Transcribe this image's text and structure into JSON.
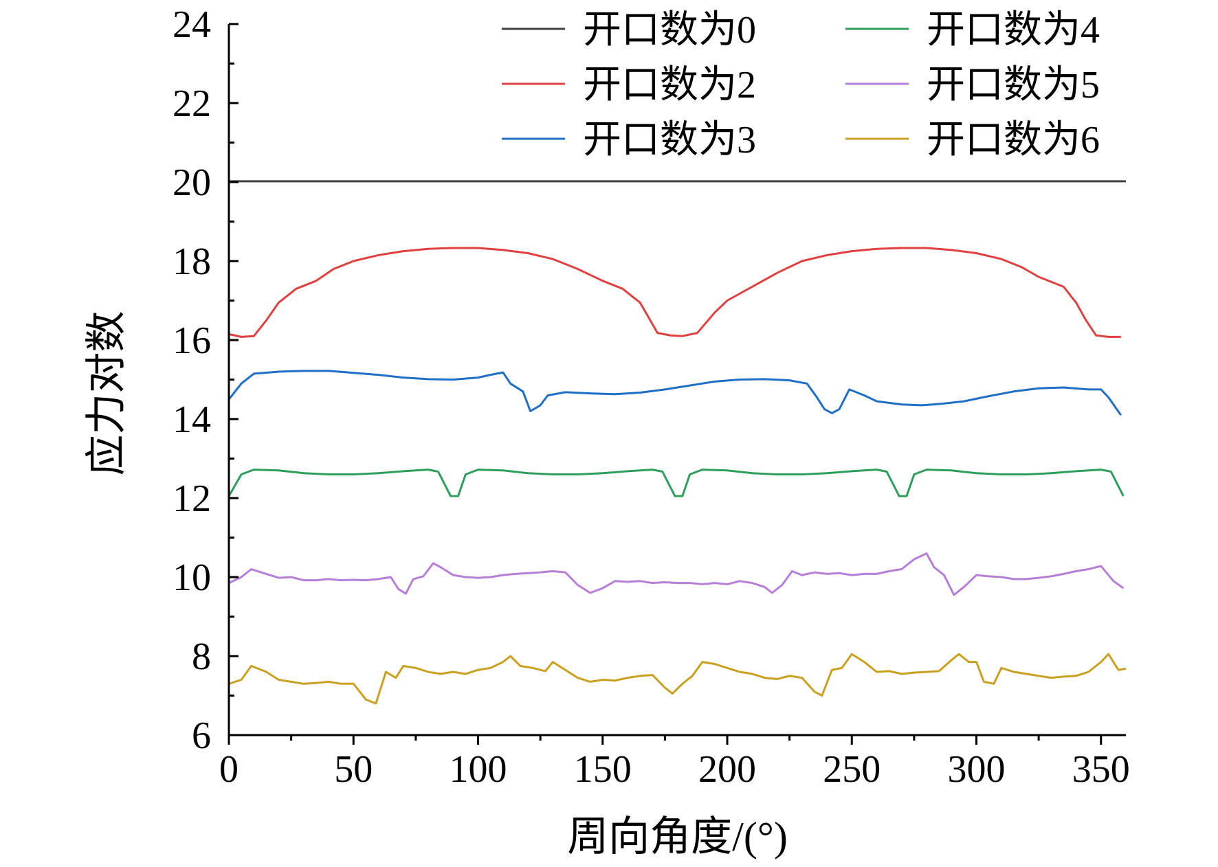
{
  "chart_data": {
    "type": "line",
    "xlabel": "周向角度/(°)",
    "ylabel": "应力对数",
    "xlim": [
      0,
      360
    ],
    "ylim": [
      6,
      24
    ],
    "xticks": [
      0,
      50,
      100,
      150,
      200,
      250,
      300,
      350
    ],
    "yticks": [
      6,
      8,
      10,
      12,
      14,
      16,
      18,
      20,
      22,
      24
    ],
    "grid": false,
    "legend_position": "top-right",
    "series": [
      {
        "name": "开口数为0",
        "color": "#404040",
        "points": [
          [
            0,
            20.02
          ],
          [
            360,
            20.02
          ]
        ]
      },
      {
        "name": "开口数为2",
        "color": "#e04040",
        "points": [
          [
            0,
            16.15
          ],
          [
            5,
            16.08
          ],
          [
            10,
            16.1
          ],
          [
            15,
            16.5
          ],
          [
            20,
            16.95
          ],
          [
            27,
            17.3
          ],
          [
            35,
            17.5
          ],
          [
            42,
            17.8
          ],
          [
            50,
            18.0
          ],
          [
            60,
            18.15
          ],
          [
            70,
            18.25
          ],
          [
            80,
            18.31
          ],
          [
            90,
            18.33
          ],
          [
            100,
            18.33
          ],
          [
            110,
            18.28
          ],
          [
            120,
            18.2
          ],
          [
            130,
            18.05
          ],
          [
            140,
            17.8
          ],
          [
            150,
            17.5
          ],
          [
            158,
            17.3
          ],
          [
            165,
            16.95
          ],
          [
            170,
            16.4
          ],
          [
            172,
            16.18
          ],
          [
            177,
            16.12
          ],
          [
            182,
            16.1
          ],
          [
            188,
            16.18
          ],
          [
            195,
            16.7
          ],
          [
            200,
            17.0
          ],
          [
            210,
            17.35
          ],
          [
            220,
            17.7
          ],
          [
            230,
            18.0
          ],
          [
            240,
            18.15
          ],
          [
            250,
            18.25
          ],
          [
            260,
            18.31
          ],
          [
            270,
            18.33
          ],
          [
            280,
            18.33
          ],
          [
            290,
            18.28
          ],
          [
            300,
            18.2
          ],
          [
            310,
            18.05
          ],
          [
            318,
            17.85
          ],
          [
            325,
            17.6
          ],
          [
            335,
            17.35
          ],
          [
            340,
            16.95
          ],
          [
            344,
            16.5
          ],
          [
            348,
            16.12
          ],
          [
            353,
            16.08
          ],
          [
            358,
            16.08
          ]
        ]
      },
      {
        "name": "开口数为3",
        "color": "#1f6fc6",
        "points": [
          [
            0,
            14.5
          ],
          [
            5,
            14.9
          ],
          [
            10,
            15.15
          ],
          [
            20,
            15.2
          ],
          [
            30,
            15.22
          ],
          [
            40,
            15.22
          ],
          [
            50,
            15.17
          ],
          [
            60,
            15.12
          ],
          [
            70,
            15.05
          ],
          [
            80,
            15.01
          ],
          [
            90,
            15.0
          ],
          [
            100,
            15.05
          ],
          [
            105,
            15.12
          ],
          [
            110,
            15.18
          ],
          [
            113,
            14.9
          ],
          [
            118,
            14.7
          ],
          [
            121,
            14.2
          ],
          [
            125,
            14.35
          ],
          [
            128,
            14.6
          ],
          [
            135,
            14.68
          ],
          [
            145,
            14.65
          ],
          [
            155,
            14.63
          ],
          [
            165,
            14.67
          ],
          [
            175,
            14.75
          ],
          [
            185,
            14.85
          ],
          [
            195,
            14.95
          ],
          [
            205,
            15.0
          ],
          [
            215,
            15.01
          ],
          [
            225,
            14.98
          ],
          [
            232,
            14.9
          ],
          [
            236,
            14.55
          ],
          [
            239,
            14.25
          ],
          [
            242,
            14.15
          ],
          [
            245,
            14.25
          ],
          [
            249,
            14.75
          ],
          [
            255,
            14.6
          ],
          [
            260,
            14.45
          ],
          [
            270,
            14.37
          ],
          [
            278,
            14.35
          ],
          [
            285,
            14.38
          ],
          [
            295,
            14.45
          ],
          [
            305,
            14.58
          ],
          [
            315,
            14.7
          ],
          [
            325,
            14.78
          ],
          [
            335,
            14.8
          ],
          [
            345,
            14.75
          ],
          [
            350,
            14.75
          ],
          [
            353,
            14.55
          ],
          [
            358,
            14.1
          ]
        ]
      },
      {
        "name": "开口数为4",
        "color": "#2e9e5b",
        "points": [
          [
            0,
            12.05
          ],
          [
            5,
            12.6
          ],
          [
            10,
            12.72
          ],
          [
            20,
            12.7
          ],
          [
            30,
            12.63
          ],
          [
            40,
            12.6
          ],
          [
            50,
            12.6
          ],
          [
            60,
            12.63
          ],
          [
            70,
            12.68
          ],
          [
            80,
            12.72
          ],
          [
            84,
            12.67
          ],
          [
            87,
            12.3
          ],
          [
            89,
            12.05
          ],
          [
            92,
            12.05
          ],
          [
            95,
            12.6
          ],
          [
            100,
            12.72
          ],
          [
            110,
            12.7
          ],
          [
            120,
            12.63
          ],
          [
            130,
            12.6
          ],
          [
            140,
            12.6
          ],
          [
            150,
            12.63
          ],
          [
            160,
            12.68
          ],
          [
            170,
            12.72
          ],
          [
            174,
            12.67
          ],
          [
            177,
            12.3
          ],
          [
            179,
            12.05
          ],
          [
            182,
            12.05
          ],
          [
            185,
            12.6
          ],
          [
            190,
            12.72
          ],
          [
            200,
            12.7
          ],
          [
            210,
            12.63
          ],
          [
            220,
            12.6
          ],
          [
            230,
            12.6
          ],
          [
            240,
            12.63
          ],
          [
            250,
            12.68
          ],
          [
            260,
            12.72
          ],
          [
            264,
            12.67
          ],
          [
            267,
            12.3
          ],
          [
            269,
            12.05
          ],
          [
            272,
            12.05
          ],
          [
            275,
            12.6
          ],
          [
            280,
            12.72
          ],
          [
            290,
            12.7
          ],
          [
            300,
            12.63
          ],
          [
            310,
            12.6
          ],
          [
            320,
            12.6
          ],
          [
            330,
            12.63
          ],
          [
            340,
            12.68
          ],
          [
            350,
            12.72
          ],
          [
            354,
            12.67
          ],
          [
            357,
            12.3
          ],
          [
            359,
            12.05
          ]
        ]
      },
      {
        "name": "开口数为5",
        "color": "#b57fd8",
        "points": [
          [
            0,
            9.85
          ],
          [
            5,
            10.0
          ],
          [
            9,
            10.2
          ],
          [
            15,
            10.08
          ],
          [
            20,
            9.98
          ],
          [
            25,
            10.0
          ],
          [
            30,
            9.92
          ],
          [
            35,
            9.92
          ],
          [
            40,
            9.95
          ],
          [
            45,
            9.92
          ],
          [
            50,
            9.93
          ],
          [
            55,
            9.92
          ],
          [
            60,
            9.95
          ],
          [
            65,
            10.0
          ],
          [
            68,
            9.7
          ],
          [
            71,
            9.58
          ],
          [
            74,
            9.95
          ],
          [
            78,
            10.02
          ],
          [
            82,
            10.35
          ],
          [
            85,
            10.25
          ],
          [
            90,
            10.05
          ],
          [
            95,
            10.0
          ],
          [
            100,
            9.98
          ],
          [
            105,
            10.0
          ],
          [
            110,
            10.05
          ],
          [
            115,
            10.08
          ],
          [
            120,
            10.1
          ],
          [
            125,
            10.12
          ],
          [
            130,
            10.15
          ],
          [
            135,
            10.12
          ],
          [
            140,
            9.8
          ],
          [
            145,
            9.6
          ],
          [
            150,
            9.72
          ],
          [
            155,
            9.9
          ],
          [
            160,
            9.88
          ],
          [
            165,
            9.9
          ],
          [
            170,
            9.85
          ],
          [
            175,
            9.87
          ],
          [
            180,
            9.85
          ],
          [
            185,
            9.85
          ],
          [
            190,
            9.82
          ],
          [
            195,
            9.85
          ],
          [
            200,
            9.82
          ],
          [
            205,
            9.9
          ],
          [
            210,
            9.85
          ],
          [
            215,
            9.75
          ],
          [
            218,
            9.6
          ],
          [
            222,
            9.8
          ],
          [
            226,
            10.15
          ],
          [
            230,
            10.05
          ],
          [
            235,
            10.12
          ],
          [
            240,
            10.08
          ],
          [
            245,
            10.1
          ],
          [
            250,
            10.05
          ],
          [
            255,
            10.08
          ],
          [
            260,
            10.08
          ],
          [
            265,
            10.15
          ],
          [
            270,
            10.2
          ],
          [
            275,
            10.45
          ],
          [
            280,
            10.6
          ],
          [
            283,
            10.25
          ],
          [
            287,
            10.05
          ],
          [
            291,
            9.55
          ],
          [
            295,
            9.75
          ],
          [
            300,
            10.05
          ],
          [
            305,
            10.02
          ],
          [
            310,
            10.0
          ],
          [
            315,
            9.95
          ],
          [
            320,
            9.95
          ],
          [
            325,
            9.98
          ],
          [
            330,
            10.02
          ],
          [
            335,
            10.08
          ],
          [
            340,
            10.15
          ],
          [
            345,
            10.2
          ],
          [
            350,
            10.28
          ],
          [
            355,
            9.9
          ],
          [
            359,
            9.72
          ]
        ]
      },
      {
        "name": "开口数为6",
        "color": "#c9a020",
        "points": [
          [
            0,
            7.3
          ],
          [
            5,
            7.4
          ],
          [
            9,
            7.75
          ],
          [
            15,
            7.6
          ],
          [
            20,
            7.4
          ],
          [
            25,
            7.35
          ],
          [
            30,
            7.3
          ],
          [
            35,
            7.32
          ],
          [
            40,
            7.35
          ],
          [
            45,
            7.3
          ],
          [
            50,
            7.3
          ],
          [
            55,
            6.9
          ],
          [
            59,
            6.8
          ],
          [
            63,
            7.6
          ],
          [
            67,
            7.45
          ],
          [
            70,
            7.75
          ],
          [
            75,
            7.7
          ],
          [
            80,
            7.6
          ],
          [
            85,
            7.55
          ],
          [
            90,
            7.6
          ],
          [
            95,
            7.55
          ],
          [
            100,
            7.65
          ],
          [
            105,
            7.7
          ],
          [
            110,
            7.85
          ],
          [
            113,
            8.0
          ],
          [
            117,
            7.75
          ],
          [
            122,
            7.7
          ],
          [
            127,
            7.62
          ],
          [
            130,
            7.85
          ],
          [
            135,
            7.65
          ],
          [
            140,
            7.45
          ],
          [
            145,
            7.35
          ],
          [
            150,
            7.4
          ],
          [
            155,
            7.38
          ],
          [
            160,
            7.45
          ],
          [
            165,
            7.5
          ],
          [
            170,
            7.52
          ],
          [
            175,
            7.2
          ],
          [
            178,
            7.05
          ],
          [
            182,
            7.3
          ],
          [
            186,
            7.5
          ],
          [
            190,
            7.85
          ],
          [
            195,
            7.8
          ],
          [
            200,
            7.7
          ],
          [
            205,
            7.6
          ],
          [
            210,
            7.55
          ],
          [
            215,
            7.45
          ],
          [
            220,
            7.42
          ],
          [
            225,
            7.5
          ],
          [
            230,
            7.45
          ],
          [
            235,
            7.1
          ],
          [
            238,
            7.0
          ],
          [
            242,
            7.65
          ],
          [
            246,
            7.7
          ],
          [
            250,
            8.05
          ],
          [
            255,
            7.85
          ],
          [
            260,
            7.6
          ],
          [
            265,
            7.62
          ],
          [
            270,
            7.55
          ],
          [
            275,
            7.58
          ],
          [
            280,
            7.6
          ],
          [
            285,
            7.62
          ],
          [
            290,
            7.9
          ],
          [
            293,
            8.05
          ],
          [
            297,
            7.85
          ],
          [
            300,
            7.85
          ],
          [
            303,
            7.35
          ],
          [
            307,
            7.3
          ],
          [
            310,
            7.7
          ],
          [
            315,
            7.6
          ],
          [
            320,
            7.55
          ],
          [
            325,
            7.5
          ],
          [
            330,
            7.45
          ],
          [
            335,
            7.48
          ],
          [
            340,
            7.5
          ],
          [
            345,
            7.6
          ],
          [
            350,
            7.85
          ],
          [
            353,
            8.05
          ],
          [
            357,
            7.65
          ],
          [
            360,
            7.68
          ]
        ]
      }
    ]
  }
}
